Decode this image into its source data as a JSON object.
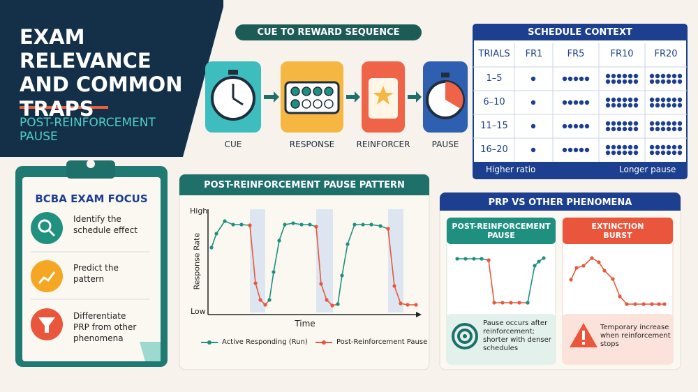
{
  "header": {
    "title": "EXAM RELEVANCE AND COMMON TRAPS",
    "subtitle": "POST-REINFORCEMENT PAUSE"
  },
  "sequence": {
    "title": "CUE TO REWARD SEQUENCE",
    "steps": [
      "CUE",
      "RESPONSE",
      "REINFORCER",
      "PAUSE"
    ]
  },
  "schedule": {
    "title": "SCHEDULE CONTEXT",
    "columns": [
      "TRIALS",
      "FR1",
      "FR5",
      "FR10",
      "FR20"
    ],
    "rows": [
      "1–5",
      "6–10",
      "11–15",
      "16–20"
    ],
    "footer_left": "Higher ratio",
    "footer_right": "Longer pause"
  },
  "focus": {
    "title": "BCBA EXAM FOCUS",
    "items": [
      "Identify the schedule effect",
      "Predict the pattern",
      "Differentiate PRP from other phenomena"
    ]
  },
  "pattern": {
    "title": "POST-REINFORCEMENT PAUSE PATTERN",
    "y_label": "Response Rate",
    "y_high": "High",
    "y_low": "Low",
    "x_label": "Time",
    "legend": [
      "Active Responding (Run)",
      "Post-Reinforcement Pause"
    ]
  },
  "comparison": {
    "title": "PRP VS OTHER PHENOMENA",
    "cards": [
      {
        "title": "POST-REINFORCEMENT PAUSE",
        "text": "Pause occurs after reinforcement; shorter with denser schedules"
      },
      {
        "title": "EXTINCTION BURST",
        "text": "Temporary increase when reinforcement stops"
      }
    ]
  }
}
